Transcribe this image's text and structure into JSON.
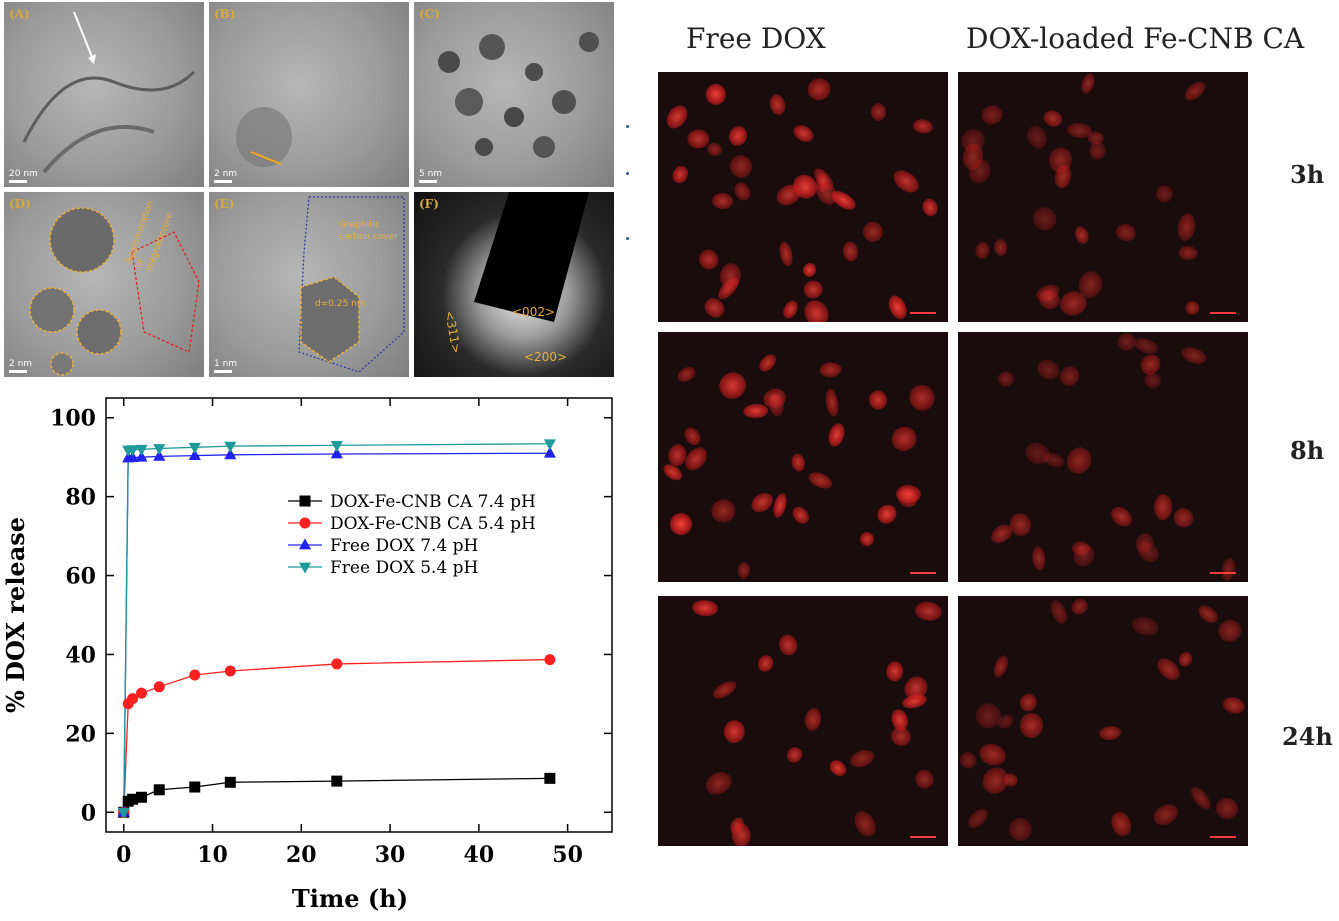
{
  "tem_panels": [
    {
      "letter": "(A)",
      "scale": "20 nm",
      "notes": []
    },
    {
      "letter": "(B)",
      "scale": "2 nm",
      "notes": []
    },
    {
      "letter": "(C)",
      "scale": "5 nm",
      "notes": []
    },
    {
      "letter": "(D)",
      "scale": "2 nm",
      "notes": [
        "Agglomeration of magneticcore"
      ]
    },
    {
      "letter": "(E)",
      "scale": "1 nm",
      "notes": [
        "Graphitic",
        "carbon cover",
        "d=0.25 nm"
      ]
    },
    {
      "letter": "(F)",
      "scale": "",
      "notes": [
        "<002>",
        "<311>",
        "<200>"
      ]
    }
  ],
  "fluorescence": {
    "col_titles": [
      "Free DOX",
      "DOX-loaded Fe-CNB CA"
    ],
    "row_labels": [
      "3h",
      "8h",
      "24h"
    ],
    "cell_color": "#e83a32"
  },
  "chart_data": {
    "type": "line",
    "xlabel": "Time (h)",
    "ylabel": "% DOX release",
    "xlim": [
      -2,
      55
    ],
    "ylim": [
      -5,
      105
    ],
    "xticks": [
      0,
      10,
      20,
      30,
      40,
      50
    ],
    "yticks": [
      0,
      20,
      40,
      60,
      80,
      100
    ],
    "legend_position": "center-right",
    "grid": false,
    "series": [
      {
        "name": "DOX-Fe-CNB CA 7.4 pH",
        "color": "#000000",
        "marker": "square",
        "x": [
          0,
          0.5,
          1,
          2,
          4,
          8,
          12,
          24,
          48
        ],
        "y": [
          0,
          2.8,
          3.3,
          3.8,
          5.7,
          6.4,
          7.6,
          7.9,
          8.6
        ]
      },
      {
        "name": "DOX-Fe-CNB CA 5.4 pH",
        "color": "#ff2020",
        "marker": "circle",
        "x": [
          0,
          0.5,
          1,
          2,
          4,
          8,
          12,
          24,
          48
        ],
        "y": [
          0,
          27.5,
          28.8,
          30.2,
          31.8,
          34.8,
          35.8,
          37.6,
          38.7
        ]
      },
      {
        "name": "Free DOX 7.4 pH",
        "color": "#2222ee",
        "marker": "triangle-up",
        "x": [
          0,
          0.5,
          1,
          2,
          4,
          8,
          12,
          24,
          48
        ],
        "y": [
          0,
          89.8,
          89.9,
          90.0,
          90.2,
          90.4,
          90.6,
          90.8,
          91.0
        ]
      },
      {
        "name": "Free DOX 5.4 pH",
        "color": "#1f9a9a",
        "marker": "triangle-down",
        "x": [
          0,
          0.5,
          1,
          2,
          4,
          8,
          12,
          24,
          48
        ],
        "y": [
          0,
          91.8,
          91.9,
          92.0,
          92.2,
          92.5,
          92.8,
          93.0,
          93.4
        ]
      }
    ]
  }
}
